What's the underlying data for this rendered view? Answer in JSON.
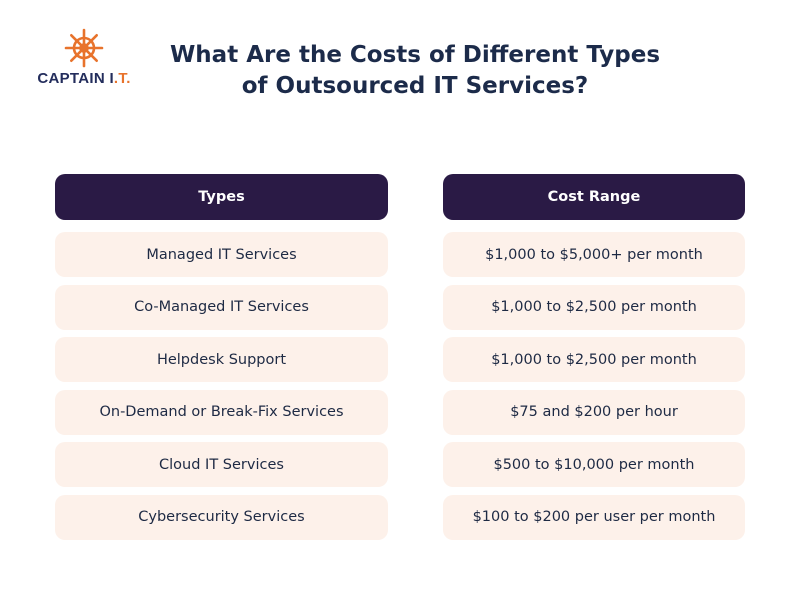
{
  "logo": {
    "name": "CAPTAIN I",
    "suffix": ".T",
    "end": ".",
    "icon": "ship-wheel-icon",
    "accent": "#e8732c"
  },
  "title": {
    "line1": "What Are the Costs of Different Types",
    "line2": "of Outsourced IT Services?"
  },
  "table": {
    "headers": [
      "Types",
      "Cost Range"
    ],
    "rows": [
      {
        "type": "Managed IT Services",
        "cost": "$1,000 to $5,000+ per month"
      },
      {
        "type": "Co-Managed IT Services",
        "cost": "$1,000 to $2,500 per month"
      },
      {
        "type": "Helpdesk Support",
        "cost": "$1,000 to $2,500 per month"
      },
      {
        "type": "On-Demand or Break-Fix Services",
        "cost": "$75 and $200 per hour"
      },
      {
        "type": "Cloud IT Services",
        "cost": "$500 to $10,000 per month"
      },
      {
        "type": "Cybersecurity Services",
        "cost": "$100 to $200 per user per month"
      }
    ]
  },
  "colors": {
    "header_bg": "#2a1a45",
    "row_bg": "#fdf1ea",
    "text": "#1e2a44"
  }
}
